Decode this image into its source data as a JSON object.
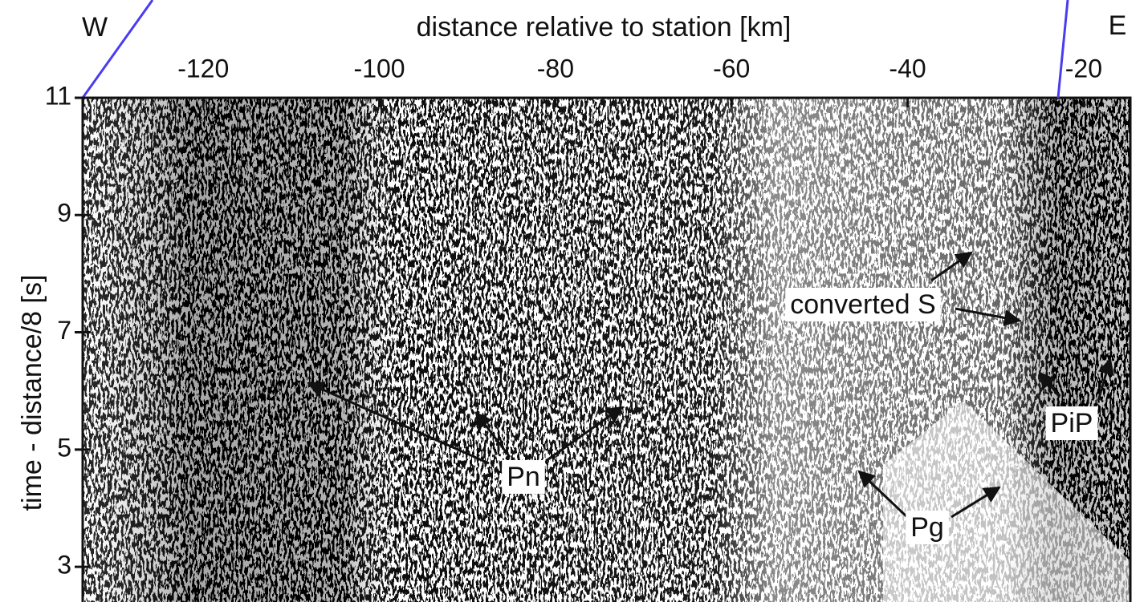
{
  "chart_data": {
    "type": "seismic",
    "x_label": "distance relative to station [km]",
    "y_label": "time - distance/8 [s]",
    "left_label": "W",
    "right_label": "E",
    "xlim": [
      -133.7,
      -14.7
    ],
    "ylim": [
      2.4,
      11
    ],
    "xticks": [
      -120,
      -100,
      -80,
      -60,
      -40,
      -20
    ],
    "yticks": [
      11,
      9,
      7,
      5,
      3
    ],
    "annotations": [
      "Pn",
      "Pg",
      "converted S",
      "PiP"
    ]
  }
}
